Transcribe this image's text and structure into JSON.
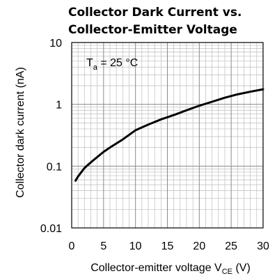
{
  "chart_data": {
    "type": "line",
    "title_lines": [
      "Collector  Dark  Current vs.",
      "Collector-Emitter Voltage"
    ],
    "xlabel": {
      "text": "Collector-emitter voltage V",
      "subscript": "CE",
      "unit": " (V)"
    },
    "ylabel": "Collector dark current (nA)",
    "annotation": {
      "text": "T",
      "subscript": "a",
      "suffix": " = 25 °C"
    },
    "xlim": [
      0,
      30
    ],
    "ylim": [
      0.01,
      10
    ],
    "yscale": "log",
    "grid": true,
    "x_ticks": [
      0,
      5,
      10,
      15,
      20,
      25,
      30
    ],
    "x_tick_labels": [
      "0",
      "5",
      "10",
      "15",
      "20",
      "25",
      "30"
    ],
    "y_ticks": [
      0.01,
      0.1,
      1,
      10
    ],
    "y_tick_labels": [
      "0.01",
      "0.1",
      "1",
      "10"
    ],
    "series": [
      {
        "color": "#000000",
        "x": [
          0.6,
          1,
          2,
          3,
          4,
          5,
          6,
          8,
          10,
          12,
          14,
          16,
          18,
          20,
          22,
          24,
          26,
          28,
          30
        ],
        "y": [
          0.058,
          0.068,
          0.093,
          0.115,
          0.14,
          0.17,
          0.2,
          0.27,
          0.38,
          0.47,
          0.57,
          0.67,
          0.8,
          0.95,
          1.1,
          1.28,
          1.45,
          1.6,
          1.75
        ]
      }
    ]
  }
}
